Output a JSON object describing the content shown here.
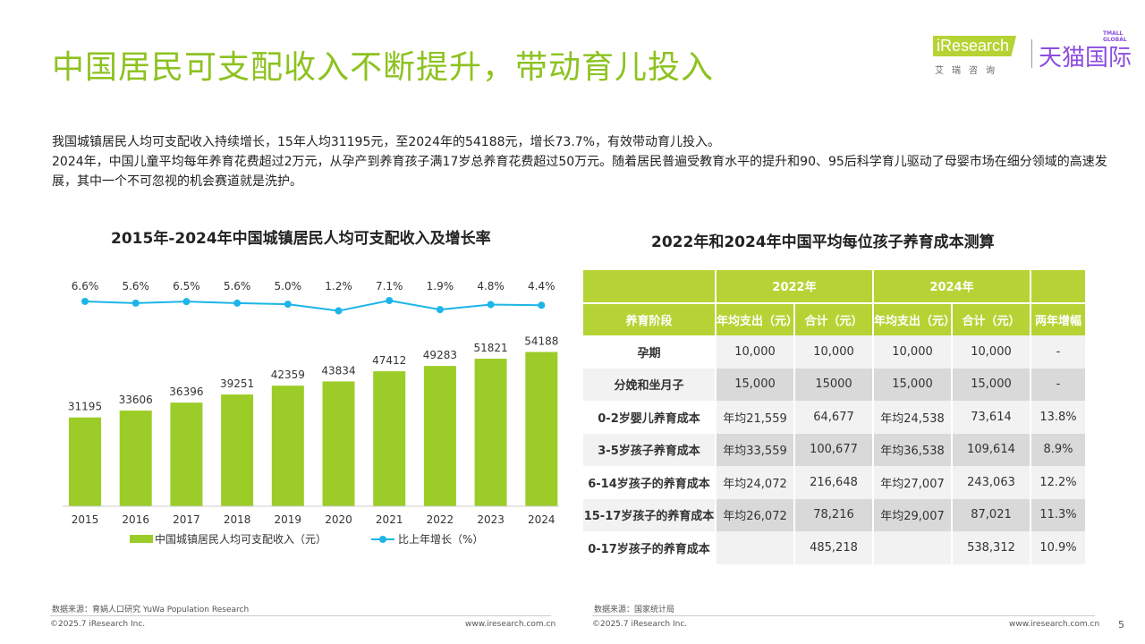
{
  "title": "中国居民可支配收入不断提升，带动育儿投入",
  "logo": {
    "iresearch": "iResearch",
    "iresearch_sub": "艾瑞咨询",
    "tmall": "天猫国际",
    "tmall_global": "TMALL GLOBAL"
  },
  "intro": [
    "我国城镇居民人均可支配收入持续增长，15年人均31195元，至2024年的54188元，增长73.7%，有效带动育儿投入。",
    "2024年，中国儿童平均每年养育花费超过2万元，从孕产到养育孩子满17岁总养育花费超过50万元。随着居民普遍受教育水平的提升和90、95后科学育儿驱动了母婴市场在细分领域的高速发展，其中一个不可忽视的机会赛道就是洗护。"
  ],
  "chart_data": {
    "type": "bar",
    "title": "2015年-2024年中国城镇居民人均可支配收入及增长率",
    "categories": [
      "2015",
      "2016",
      "2017",
      "2018",
      "2019",
      "2020",
      "2021",
      "2022",
      "2023",
      "2024"
    ],
    "series": [
      {
        "name": "中国城镇居民人均可支配收入（元）",
        "type": "bar",
        "values": [
          31195,
          33606,
          36396,
          39251,
          42359,
          43834,
          47412,
          49283,
          51821,
          54188
        ],
        "color": "#9ccc28"
      },
      {
        "name": "比上年增长（%）",
        "type": "line",
        "values": [
          6.6,
          5.6,
          6.5,
          5.6,
          5.0,
          1.2,
          7.1,
          1.9,
          4.8,
          4.4
        ],
        "labels": [
          "6.6%",
          "5.6%",
          "6.5%",
          "5.6%",
          "5.0%",
          "1.2%",
          "7.1%",
          "1.9%",
          "4.8%",
          "4.4%"
        ],
        "color": "#1cb5e8"
      }
    ],
    "legend": "bottom"
  },
  "table": {
    "title": "2022年和2024年中国平均每位孩子养育成本测算",
    "years": [
      "2022年",
      "2024年"
    ],
    "headers": [
      "养育阶段",
      "年均支出（元）",
      "合计（元）",
      "年均支出（元）",
      "合计（元）",
      "两年增幅"
    ],
    "rows": [
      [
        "孕期",
        "10,000",
        "10,000",
        "10,000",
        "10,000",
        "-"
      ],
      [
        "分娩和坐月子",
        "15,000",
        "15000",
        "15,000",
        "15,000",
        "-"
      ],
      [
        "0-2岁婴儿养育成本",
        "年均21,559",
        "64,677",
        "年均24,538",
        "73,614",
        "13.8%"
      ],
      [
        "3-5岁孩子养育成本",
        "年均33,559",
        "100,677",
        "年均36,538",
        "109,614",
        "8.9%"
      ],
      [
        "6-14岁孩子的养育成本",
        "年均24,072",
        "216,648",
        "年均27,007",
        "243,063",
        "12.2%"
      ],
      [
        "15-17岁孩子的养育成本",
        "年均26,072",
        "78,216",
        "年均29,007",
        "87,021",
        "11.3%"
      ],
      [
        "0-17岁孩子的养育成本",
        "",
        "485,218",
        "",
        "538,312",
        "10.9%"
      ]
    ]
  },
  "footer": {
    "source_left": "数据来源：育娲人口研究 YuWa Population Research",
    "source_right": "数据来源：国家统计局",
    "copyright": "©2025.7 iResearch Inc.",
    "url": "www.iresearch.com.cn",
    "page": "5"
  }
}
